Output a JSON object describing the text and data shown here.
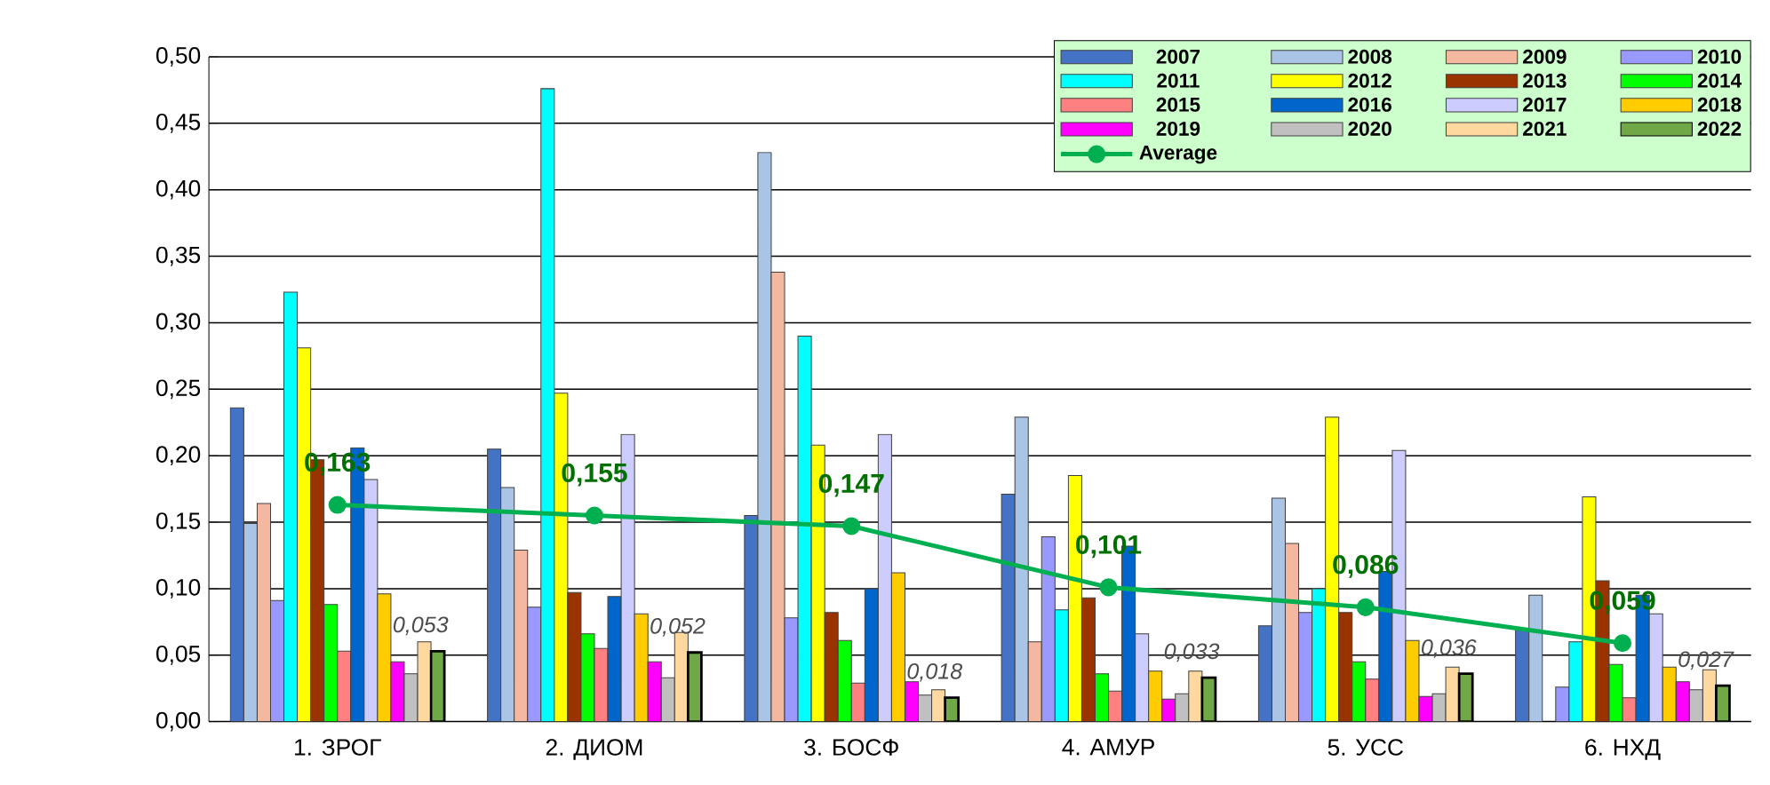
{
  "chart_data": {
    "type": "bar",
    "categories": [
      "1. ЗРОГ",
      "2. ДИОМ",
      "3. БОСФ",
      "4. АМУР",
      "5. УСС",
      "6. НХД"
    ],
    "ylim": [
      0,
      0.5
    ],
    "yticks": [
      {
        "value": 0,
        "label": "0,00"
      },
      {
        "value": 0.05,
        "label": "0,05"
      },
      {
        "value": 0.1,
        "label": "0,10"
      },
      {
        "value": 0.15,
        "label": "0,15"
      },
      {
        "value": 0.2,
        "label": "0,20"
      },
      {
        "value": 0.25,
        "label": "0,25"
      },
      {
        "value": 0.3,
        "label": "0,30"
      },
      {
        "value": 0.35,
        "label": "0,35"
      },
      {
        "value": 0.4,
        "label": "0,40"
      },
      {
        "value": 0.45,
        "label": "0,45"
      },
      {
        "value": 0.5,
        "label": "0,50"
      }
    ],
    "grid": "y",
    "legend": "top right",
    "series": [
      {
        "name": "2007",
        "color": "#4472c4",
        "values": [
          0.236,
          0.205,
          0.155,
          0.171,
          0.072,
          0.069
        ]
      },
      {
        "name": "2008",
        "color": "#a9c4e4",
        "values": [
          0.149,
          0.176,
          0.428,
          0.229,
          0.168,
          0.095
        ]
      },
      {
        "name": "2009",
        "color": "#f4b8a0",
        "values": [
          0.164,
          0.129,
          0.338,
          0.06,
          0.134,
          null
        ]
      },
      {
        "name": "2010",
        "color": "#9999ff",
        "values": [
          0.091,
          0.086,
          0.078,
          0.139,
          0.082,
          0.026
        ]
      },
      {
        "name": "2011",
        "color": "#00ffff",
        "values": [
          0.323,
          0.476,
          0.29,
          0.084,
          0.1,
          0.06
        ]
      },
      {
        "name": "2012",
        "color": "#ffff00",
        "values": [
          0.281,
          0.247,
          0.208,
          0.185,
          0.229,
          0.169
        ]
      },
      {
        "name": "2013",
        "color": "#993300",
        "values": [
          0.197,
          0.097,
          0.082,
          0.093,
          0.082,
          0.106
        ]
      },
      {
        "name": "2014",
        "color": "#00ff00",
        "values": [
          0.088,
          0.066,
          0.061,
          0.036,
          0.045,
          0.043
        ]
      },
      {
        "name": "2015",
        "color": "#ff8080",
        "values": [
          0.053,
          0.055,
          0.029,
          0.023,
          0.032,
          0.018
        ]
      },
      {
        "name": "2016",
        "color": "#0066cc",
        "values": [
          0.206,
          0.094,
          0.1,
          0.132,
          0.113,
          0.095
        ]
      },
      {
        "name": "2017",
        "color": "#ccccff",
        "values": [
          0.182,
          0.216,
          0.216,
          0.066,
          0.204,
          0.081
        ]
      },
      {
        "name": "2018",
        "color": "#ffcc00",
        "values": [
          0.096,
          0.081,
          0.112,
          0.038,
          0.061,
          0.041
        ]
      },
      {
        "name": "2019",
        "color": "#ff00ff",
        "values": [
          0.045,
          0.045,
          0.03,
          0.017,
          0.019,
          0.03
        ]
      },
      {
        "name": "2020",
        "color": "#c0c0c0",
        "values": [
          0.036,
          0.033,
          0.02,
          0.021,
          0.021,
          0.024
        ]
      },
      {
        "name": "2021",
        "color": "#ffd8a0",
        "values": [
          0.06,
          0.067,
          0.024,
          0.038,
          0.041,
          0.039
        ]
      },
      {
        "name": "2022",
        "color": "#70a848",
        "values": [
          0.053,
          0.052,
          0.018,
          0.033,
          0.036,
          0.027
        ],
        "value_labels": [
          "0,053",
          "0,052",
          "0,018",
          "0,033",
          "0,036",
          "0,027"
        ]
      },
      {
        "name": "Average",
        "type": "line",
        "color": "#00b050",
        "marker": "circle",
        "values": [
          0.163,
          0.155,
          0.147,
          0.101,
          0.086,
          0.059
        ],
        "value_labels": [
          "0,163",
          "0,155",
          "0,147",
          "0,101",
          "0,086",
          "0,059"
        ]
      }
    ]
  }
}
